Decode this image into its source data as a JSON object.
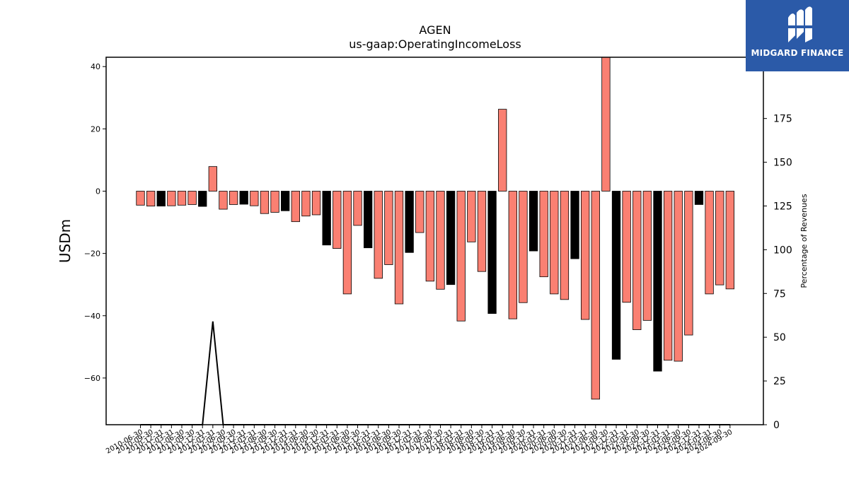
{
  "brand": {
    "name": "MIDGARD FINANCE",
    "color": "#2b5aa8"
  },
  "chart_data": {
    "type": "bar",
    "title": "AGEN",
    "subtitle": "us-gaap:OperatingIncomeLoss",
    "ylabel": "USDm",
    "y2label": "Percentage of Revenues",
    "ylim": [
      -75,
      43
    ],
    "y2lim": [
      0,
      210
    ],
    "yticks": [
      -60,
      -40,
      -20,
      0,
      20,
      40
    ],
    "y2ticks": [
      0,
      25,
      50,
      75,
      100,
      125,
      150,
      175
    ],
    "grid": false,
    "colors": {
      "quarter": "#fa8072",
      "year_end": "#000000",
      "line": "#000000"
    },
    "categories": [
      "2010-06-30",
      "2010-09-30",
      "2010-12-31",
      "2011-03-31",
      "2011-06-30",
      "2011-09-30",
      "2011-12-31",
      "2012-03-31",
      "2012-06-30",
      "2012-09-30",
      "2012-12-31",
      "2013-03-31",
      "2013-06-30",
      "2013-09-30",
      "2013-12-31",
      "2014-03-31",
      "2014-06-30",
      "2014-09-30",
      "2014-12-31",
      "2015-03-31",
      "2015-06-30",
      "2015-09-30",
      "2015-12-31",
      "2016-03-31",
      "2016-06-30",
      "2016-09-30",
      "2016-12-31",
      "2017-03-31",
      "2017-06-30",
      "2017-09-30",
      "2017-12-31",
      "2018-03-31",
      "2018-06-30",
      "2018-09-30",
      "2018-12-31",
      "2019-03-31",
      "2019-06-30",
      "2019-09-30",
      "2019-12-31",
      "2020-03-31",
      "2020-06-30",
      "2020-09-30",
      "2020-12-31",
      "2021-03-31",
      "2021-06-30",
      "2021-09-30",
      "2021-12-31",
      "2022-03-31",
      "2022-06-30",
      "2022-09-30",
      "2022-12-31",
      "2023-03-31",
      "2023-06-30",
      "2023-09-30",
      "2023-12-31",
      "2024-03-31",
      "2024-06-30",
      "2024-09-30"
    ],
    "series": [
      {
        "values": [
          -4.5,
          -4.8,
          -4.8,
          -4.7,
          -4.5,
          -4.3,
          -4.9,
          7.9,
          -5.8,
          -4.3,
          -4.2,
          -4.7,
          -7.2,
          -6.8,
          -6.3,
          -9.8,
          -8.0,
          -7.6,
          -17.3,
          -18.4,
          -33.0,
          -11.0,
          -18.2,
          -28.0,
          -23.6,
          -36.2,
          -19.7,
          -13.3,
          -28.9,
          -31.5,
          -30.0,
          -41.7,
          -16.3,
          -25.8,
          -39.3,
          26.3,
          -41.0,
          -35.8,
          -19.2,
          -27.5,
          -33.0,
          -34.8,
          -21.7,
          -41.2,
          -66.8,
          43.0,
          -54.0,
          -35.7,
          -44.5,
          -41.5,
          -57.8,
          -54.3,
          -54.6,
          -46.2,
          -4.3,
          -33.0,
          -30.1,
          -31.4
        ]
      }
    ],
    "pct_of_revenues_line": [
      0,
      0,
      0,
      0,
      0,
      0,
      0,
      59,
      0,
      0,
      0,
      0,
      0,
      0,
      0,
      0,
      0,
      0,
      0,
      0,
      0,
      0,
      0,
      0,
      0,
      0,
      0,
      0,
      0,
      0,
      0,
      0,
      0,
      0,
      0,
      0,
      0,
      0,
      0,
      0,
      0,
      0,
      0,
      0,
      0,
      0,
      0,
      0,
      0,
      0,
      0,
      0,
      0,
      0,
      0,
      0,
      0,
      0
    ]
  }
}
